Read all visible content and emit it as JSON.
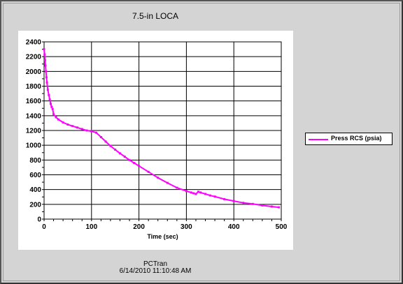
{
  "chart_data": {
    "type": "line",
    "title": "7.5-in LOCA",
    "xlabel": "Time (sec)",
    "ylabel": "",
    "xlim": [
      0,
      500
    ],
    "ylim": [
      0,
      2400
    ],
    "xticks": [
      0,
      100,
      200,
      300,
      400,
      500
    ],
    "yticks": [
      0,
      200,
      400,
      600,
      800,
      1000,
      1200,
      1400,
      1600,
      1800,
      2000,
      2200,
      2400
    ],
    "grid": "x-major-every-100-y-every-200",
    "legend_position": "right",
    "series": [
      {
        "name": "Press RCS (psia)",
        "color": "#ff00ff",
        "x": [
          0,
          1,
          2,
          3,
          4,
          5,
          6,
          8,
          10,
          12,
          14,
          16,
          18,
          20,
          25,
          30,
          40,
          50,
          60,
          70,
          80,
          90,
          100,
          110,
          120,
          130,
          140,
          150,
          160,
          170,
          180,
          190,
          200,
          220,
          240,
          260,
          280,
          300,
          310,
          315,
          320,
          325,
          330,
          340,
          350,
          360,
          380,
          400,
          420,
          440,
          460,
          480,
          495
        ],
        "y": [
          2300,
          2230,
          2150,
          2080,
          2000,
          1920,
          1850,
          1750,
          1680,
          1620,
          1560,
          1520,
          1490,
          1420,
          1380,
          1350,
          1310,
          1280,
          1260,
          1240,
          1220,
          1200,
          1190,
          1170,
          1110,
          1050,
          990,
          940,
          890,
          845,
          800,
          760,
          720,
          640,
          560,
          490,
          425,
          380,
          360,
          350,
          340,
          370,
          360,
          340,
          320,
          305,
          270,
          245,
          220,
          205,
          185,
          170,
          160
        ]
      }
    ]
  },
  "footer": {
    "source": "PCTran",
    "timestamp": "6/14/2010 11:10:48 AM"
  }
}
